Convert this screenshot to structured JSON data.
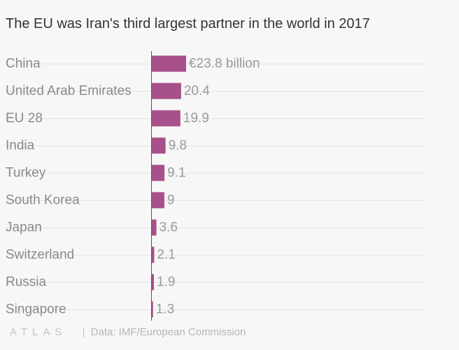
{
  "title": "The EU was Iran's third largest partner in the world in 2017",
  "footer": {
    "logo": "ATLAS",
    "source": "Data: IMF/European Commission"
  },
  "colors": {
    "bar": "#a85089",
    "grid": "#e4e4e4",
    "axis": "#555555"
  },
  "chart_data": {
    "type": "bar",
    "orientation": "horizontal",
    "title": "The EU was Iran's third largest partner in the world in 2017",
    "categories": [
      "China",
      "United Arab Emirates",
      "EU 28",
      "India",
      "Turkey",
      "South Korea",
      "Japan",
      "Switzerland",
      "Russia",
      "Singapore"
    ],
    "values": [
      23.8,
      20.4,
      19.9,
      9.8,
      9.1,
      9,
      3.6,
      2.1,
      1.9,
      1.3
    ],
    "value_labels": [
      "€23.8 billion",
      "20.4",
      "19.9",
      "9.8",
      "9.1",
      "9",
      "3.6",
      "2.1",
      "1.9",
      "1.3"
    ],
    "unit": "€ billion",
    "xlim": [
      0,
      100
    ],
    "grid": true,
    "legend": "none"
  }
}
